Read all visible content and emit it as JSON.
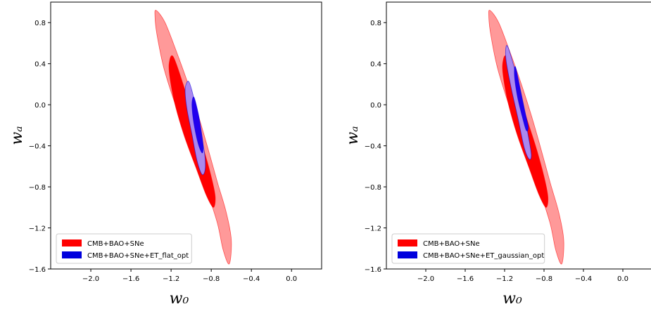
{
  "chart_data": [
    {
      "type": "contour",
      "xlabel": "w₀",
      "ylabel": "wₐ",
      "xlim": [
        -2.4,
        0.3
      ],
      "ylim": [
        -1.6,
        1.0
      ],
      "xticks": [
        -2.0,
        -1.6,
        -1.2,
        -0.8,
        -0.4,
        0.0
      ],
      "xtick_labels": [
        "−2.0",
        "−1.6",
        "−1.2",
        "−0.8",
        "−0.4",
        "0.0"
      ],
      "yticks": [
        -1.6,
        -1.2,
        -0.8,
        -0.4,
        0.0,
        0.4,
        0.8
      ],
      "ytick_labels": [
        "−1.6",
        "−1.2",
        "−0.8",
        "−0.4",
        "0.0",
        "0.4",
        "0.8"
      ],
      "legend_position": "lower-left",
      "series": [
        {
          "name": "CMB+BAO+SNe",
          "color": "#ff0000",
          "contours": [
            {
              "level": "2-sigma",
              "color": "#ff9999",
              "points": [
                [
                  -1.35,
                  0.92
                ],
                [
                  -1.26,
                  0.8
                ],
                [
                  -1.14,
                  0.5
                ],
                [
                  -1.03,
                  0.2
                ],
                [
                  -0.93,
                  -0.1
                ],
                [
                  -0.84,
                  -0.4
                ],
                [
                  -0.74,
                  -0.75
                ],
                [
                  -0.65,
                  -1.05
                ],
                [
                  -0.6,
                  -1.32
                ],
                [
                  -0.62,
                  -1.55
                ],
                [
                  -0.68,
                  -1.42
                ],
                [
                  -0.74,
                  -1.15
                ],
                [
                  -0.85,
                  -0.82
                ],
                [
                  -0.99,
                  -0.45
                ],
                [
                  -1.14,
                  -0.05
                ],
                [
                  -1.27,
                  0.35
                ],
                [
                  -1.34,
                  0.68
                ],
                [
                  -1.36,
                  0.85
                ]
              ]
            },
            {
              "level": "1-sigma",
              "color": "#ff0000",
              "points": [
                [
                  -1.18,
                  0.47
                ],
                [
                  -1.08,
                  0.2
                ],
                [
                  -0.98,
                  -0.12
                ],
                [
                  -0.88,
                  -0.42
                ],
                [
                  -0.8,
                  -0.7
                ],
                [
                  -0.76,
                  -0.9
                ],
                [
                  -0.78,
                  -1.0
                ],
                [
                  -0.85,
                  -0.88
                ],
                [
                  -0.95,
                  -0.62
                ],
                [
                  -1.07,
                  -0.3
                ],
                [
                  -1.16,
                  0.0
                ],
                [
                  -1.21,
                  0.25
                ],
                [
                  -1.22,
                  0.4
                ]
              ]
            }
          ]
        },
        {
          "name": "CMB+BAO+SNe+ET_flat_opt",
          "color": "#0000dd",
          "contours": [
            {
              "level": "2-sigma",
              "color": "#aa88ee",
              "points": [
                [
                  -1.02,
                  0.22
                ],
                [
                  -0.97,
                  0.05
                ],
                [
                  -0.92,
                  -0.2
                ],
                [
                  -0.87,
                  -0.45
                ],
                [
                  -0.86,
                  -0.62
                ],
                [
                  -0.89,
                  -0.68
                ],
                [
                  -0.94,
                  -0.55
                ],
                [
                  -0.99,
                  -0.3
                ],
                [
                  -1.04,
                  -0.05
                ],
                [
                  -1.06,
                  0.12
                ],
                [
                  -1.05,
                  0.2
                ]
              ]
            },
            {
              "level": "1-sigma",
              "color": "#2200ee",
              "points": [
                [
                  -0.97,
                  0.07
                ],
                [
                  -0.93,
                  -0.08
                ],
                [
                  -0.9,
                  -0.25
                ],
                [
                  -0.88,
                  -0.4
                ],
                [
                  -0.89,
                  -0.47
                ],
                [
                  -0.93,
                  -0.38
                ],
                [
                  -0.97,
                  -0.2
                ],
                [
                  -0.99,
                  -0.05
                ],
                [
                  -0.99,
                  0.04
                ]
              ]
            }
          ]
        }
      ]
    },
    {
      "type": "contour",
      "xlabel": "w₀",
      "ylabel": "wₐ",
      "xlim": [
        -2.4,
        0.3
      ],
      "ylim": [
        -1.6,
        1.0
      ],
      "xticks": [
        -2.0,
        -1.6,
        -1.2,
        -0.8,
        -0.4,
        0.0
      ],
      "xtick_labels": [
        "−2.0",
        "−1.6",
        "−1.2",
        "−0.8",
        "−0.4",
        "0.0"
      ],
      "yticks": [
        -1.6,
        -1.2,
        -0.8,
        -0.4,
        0.0,
        0.4,
        0.8
      ],
      "ytick_labels": [
        "−1.6",
        "−1.2",
        "−0.8",
        "−0.4",
        "0.0",
        "0.4",
        "0.8"
      ],
      "legend_position": "lower-left",
      "series": [
        {
          "name": "CMB+BAO+SNe",
          "color": "#ff0000",
          "contours": [
            {
              "level": "2-sigma",
              "color": "#ff9999",
              "points": [
                [
                  -1.35,
                  0.92
                ],
                [
                  -1.26,
                  0.8
                ],
                [
                  -1.14,
                  0.5
                ],
                [
                  -1.03,
                  0.2
                ],
                [
                  -0.93,
                  -0.1
                ],
                [
                  -0.84,
                  -0.4
                ],
                [
                  -0.74,
                  -0.75
                ],
                [
                  -0.65,
                  -1.05
                ],
                [
                  -0.6,
                  -1.32
                ],
                [
                  -0.62,
                  -1.55
                ],
                [
                  -0.68,
                  -1.42
                ],
                [
                  -0.74,
                  -1.15
                ],
                [
                  -0.85,
                  -0.82
                ],
                [
                  -0.99,
                  -0.45
                ],
                [
                  -1.14,
                  -0.05
                ],
                [
                  -1.27,
                  0.35
                ],
                [
                  -1.34,
                  0.68
                ],
                [
                  -1.36,
                  0.85
                ]
              ]
            },
            {
              "level": "1-sigma",
              "color": "#ff0000",
              "points": [
                [
                  -1.18,
                  0.47
                ],
                [
                  -1.08,
                  0.2
                ],
                [
                  -0.98,
                  -0.12
                ],
                [
                  -0.88,
                  -0.42
                ],
                [
                  -0.8,
                  -0.7
                ],
                [
                  -0.76,
                  -0.9
                ],
                [
                  -0.78,
                  -1.0
                ],
                [
                  -0.85,
                  -0.88
                ],
                [
                  -0.95,
                  -0.62
                ],
                [
                  -1.07,
                  -0.3
                ],
                [
                  -1.16,
                  0.0
                ],
                [
                  -1.21,
                  0.25
                ],
                [
                  -1.22,
                  0.4
                ]
              ]
            }
          ]
        },
        {
          "name": "CMB+BAO+SNe+ET_gaussian_opt",
          "color": "#0000dd",
          "contours": [
            {
              "level": "2-sigma",
              "color": "#aa88ee",
              "points": [
                [
                  -1.17,
                  0.57
                ],
                [
                  -1.1,
                  0.35
                ],
                [
                  -1.03,
                  0.05
                ],
                [
                  -0.97,
                  -0.25
                ],
                [
                  -0.93,
                  -0.48
                ],
                [
                  -0.95,
                  -0.53
                ],
                [
                  -1.0,
                  -0.42
                ],
                [
                  -1.06,
                  -0.15
                ],
                [
                  -1.13,
                  0.15
                ],
                [
                  -1.18,
                  0.4
                ],
                [
                  -1.19,
                  0.52
                ]
              ]
            },
            {
              "level": "1-sigma",
              "color": "#2200ee",
              "points": [
                [
                  -1.09,
                  0.37
                ],
                [
                  -1.04,
                  0.15
                ],
                [
                  -0.99,
                  -0.08
                ],
                [
                  -0.96,
                  -0.22
                ],
                [
                  -0.98,
                  -0.25
                ],
                [
                  -1.02,
                  -0.12
                ],
                [
                  -1.07,
                  0.08
                ],
                [
                  -1.1,
                  0.28
                ]
              ]
            }
          ]
        }
      ]
    }
  ]
}
